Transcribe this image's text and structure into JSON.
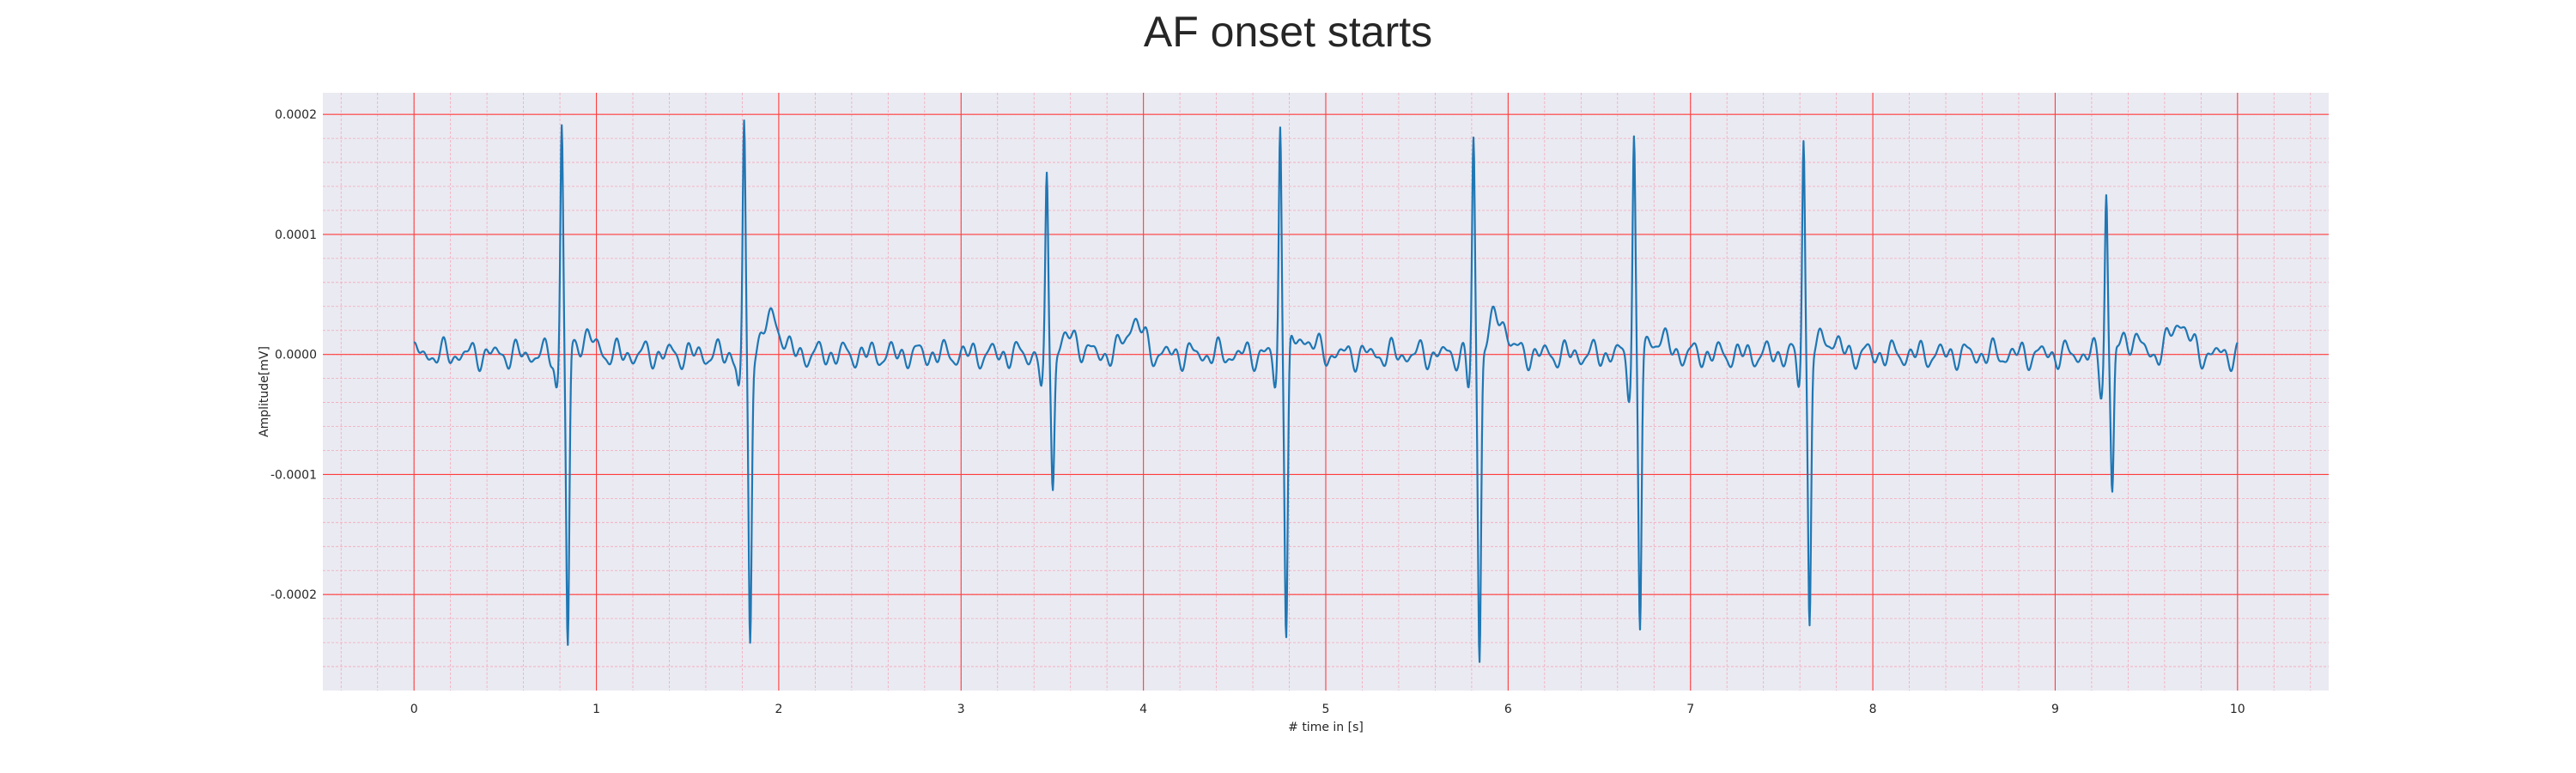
{
  "chart_data": {
    "type": "line",
    "title": "AF onset starts",
    "xlabel": "# time in [s]",
    "ylabel": "Amplitude[mV]",
    "xlim": [
      -0.5,
      10.5
    ],
    "ylim": [
      -0.00028,
      0.000218
    ],
    "xticks": [
      0,
      1,
      2,
      3,
      4,
      5,
      6,
      7,
      8,
      9,
      10
    ],
    "xtick_labels": [
      "0",
      "1",
      "2",
      "3",
      "4",
      "5",
      "6",
      "7",
      "8",
      "9",
      "10"
    ],
    "yticks": [
      0.0002,
      0.0001,
      0.0,
      -0.0001,
      -0.0002
    ],
    "ytick_labels": [
      "0.0002",
      "0.0001",
      "0.0000",
      "-0.0001",
      "-0.0002"
    ],
    "grid": true,
    "minor_grid": true,
    "colors": {
      "line": "#1f77b4",
      "plot_background": "#eaeaf2",
      "major_grid": "#ff3c3c",
      "minor_grid": "#f4a8b8"
    },
    "series": [
      {
        "x_start": 0,
        "x_end": 10,
        "beats": [
          {
            "t": 0.81,
            "r": 0.000195,
            "s": -0.00025
          },
          {
            "t": 1.81,
            "r": 0.000188,
            "s": -0.000242
          },
          {
            "t": 3.47,
            "r": 0.000142,
            "s": -0.000107
          },
          {
            "t": 4.75,
            "r": 0.000194,
            "s": -0.000235
          },
          {
            "t": 5.81,
            "r": 0.000177,
            "s": -0.000254
          },
          {
            "t": 6.69,
            "r": 0.00018,
            "s": -0.000231
          },
          {
            "t": 7.62,
            "r": 0.000188,
            "s": -0.000231
          },
          {
            "t": 9.28,
            "r": 0.000136,
            "s": -0.00012
          }
        ],
        "waves": [
          {
            "t": 3.95,
            "a": 2.8e-05
          },
          {
            "t": 9.68,
            "a": 2.8e-05
          },
          {
            "t": 5.95,
            "a": 1.8e-05
          },
          {
            "t": 1.98,
            "a": 1.8e-05
          }
        ]
      }
    ]
  }
}
